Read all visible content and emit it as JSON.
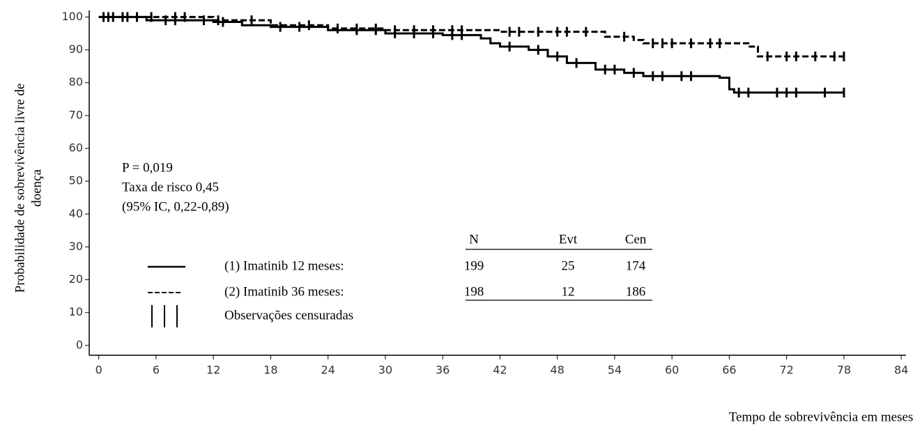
{
  "chart_data": {
    "type": "step",
    "ylabel": [
      "Probabilidade de sobrevivência livre de",
      "doença"
    ],
    "xlabel": "Tempo de sobrevivência em meses",
    "annotations": [
      "P = 0,019",
      "Taxa de risco 0,45",
      "(95% IC, 0,22-0,89)"
    ],
    "xlim": [
      -1,
      84.5
    ],
    "ylim": [
      -3,
      102
    ],
    "xticks": [
      0,
      6,
      12,
      18,
      24,
      30,
      36,
      42,
      48,
      54,
      60,
      66,
      72,
      78,
      84
    ],
    "yticks": [
      0,
      10,
      20,
      30,
      40,
      50,
      60,
      70,
      80,
      90,
      100
    ],
    "series": [
      {
        "name": "(1) Imatinib 12 meses:",
        "color": "#000000",
        "style": "solid",
        "x": [
          0,
          5,
          12,
          15,
          18,
          24,
          30,
          36,
          40,
          41,
          42,
          45,
          47,
          49,
          52,
          55,
          57,
          65,
          66,
          66.5,
          78
        ],
        "values": [
          100,
          99,
          98.5,
          97.5,
          97,
          96,
          95,
          94.5,
          93.5,
          92,
          91,
          90,
          88,
          86,
          84,
          83,
          82,
          81.5,
          78,
          77,
          77
        ],
        "censored_x": [
          0.5,
          1.5,
          3,
          4,
          7,
          8,
          11,
          13,
          19,
          21,
          27,
          29,
          31,
          33,
          35,
          37,
          38,
          43,
          46,
          48,
          50,
          53,
          54,
          56,
          58,
          59,
          61,
          62,
          67,
          68,
          71,
          72,
          73,
          76,
          78
        ],
        "censored_values": [
          100,
          100,
          100,
          100,
          99,
          99,
          99,
          98.5,
          97,
          97,
          96,
          96,
          95,
          95,
          95,
          94.5,
          94.5,
          91,
          90,
          88,
          86,
          84,
          84,
          83,
          82,
          82,
          82,
          82,
          77,
          77,
          77,
          77,
          77,
          77,
          77
        ]
      },
      {
        "name": "(2) Imatinib 36 meses:",
        "color": "#000000",
        "style": "dashed",
        "x": [
          0,
          12,
          18,
          24,
          30,
          42,
          53,
          56,
          57,
          68,
          69,
          78
        ],
        "values": [
          100,
          99,
          97.5,
          96.5,
          96,
          95.5,
          94,
          93,
          92,
          91,
          88,
          88
        ],
        "censored_x": [
          1,
          2.5,
          5.5,
          8,
          9,
          12.5,
          16,
          22,
          25,
          27,
          29,
          31,
          33,
          35,
          37,
          38,
          43,
          44,
          46,
          48,
          49,
          51,
          55,
          58,
          59,
          60,
          62,
          64,
          65,
          70,
          72,
          73,
          75,
          77,
          78
        ],
        "censored_values": [
          100,
          100,
          100,
          100,
          100,
          99,
          99,
          97.5,
          96.5,
          96.5,
          96.5,
          96,
          96,
          96,
          96,
          96,
          95.5,
          95.5,
          95.5,
          95.5,
          95.5,
          95.5,
          94,
          92,
          92,
          92,
          92,
          92,
          92,
          88,
          88,
          88,
          88,
          88,
          88
        ]
      }
    ],
    "censor_label": "Observações censuradas",
    "table": {
      "columns": [
        "N",
        "Evt",
        "Cen"
      ],
      "rows": [
        [
          199,
          25,
          174
        ],
        [
          198,
          12,
          186
        ]
      ]
    }
  }
}
